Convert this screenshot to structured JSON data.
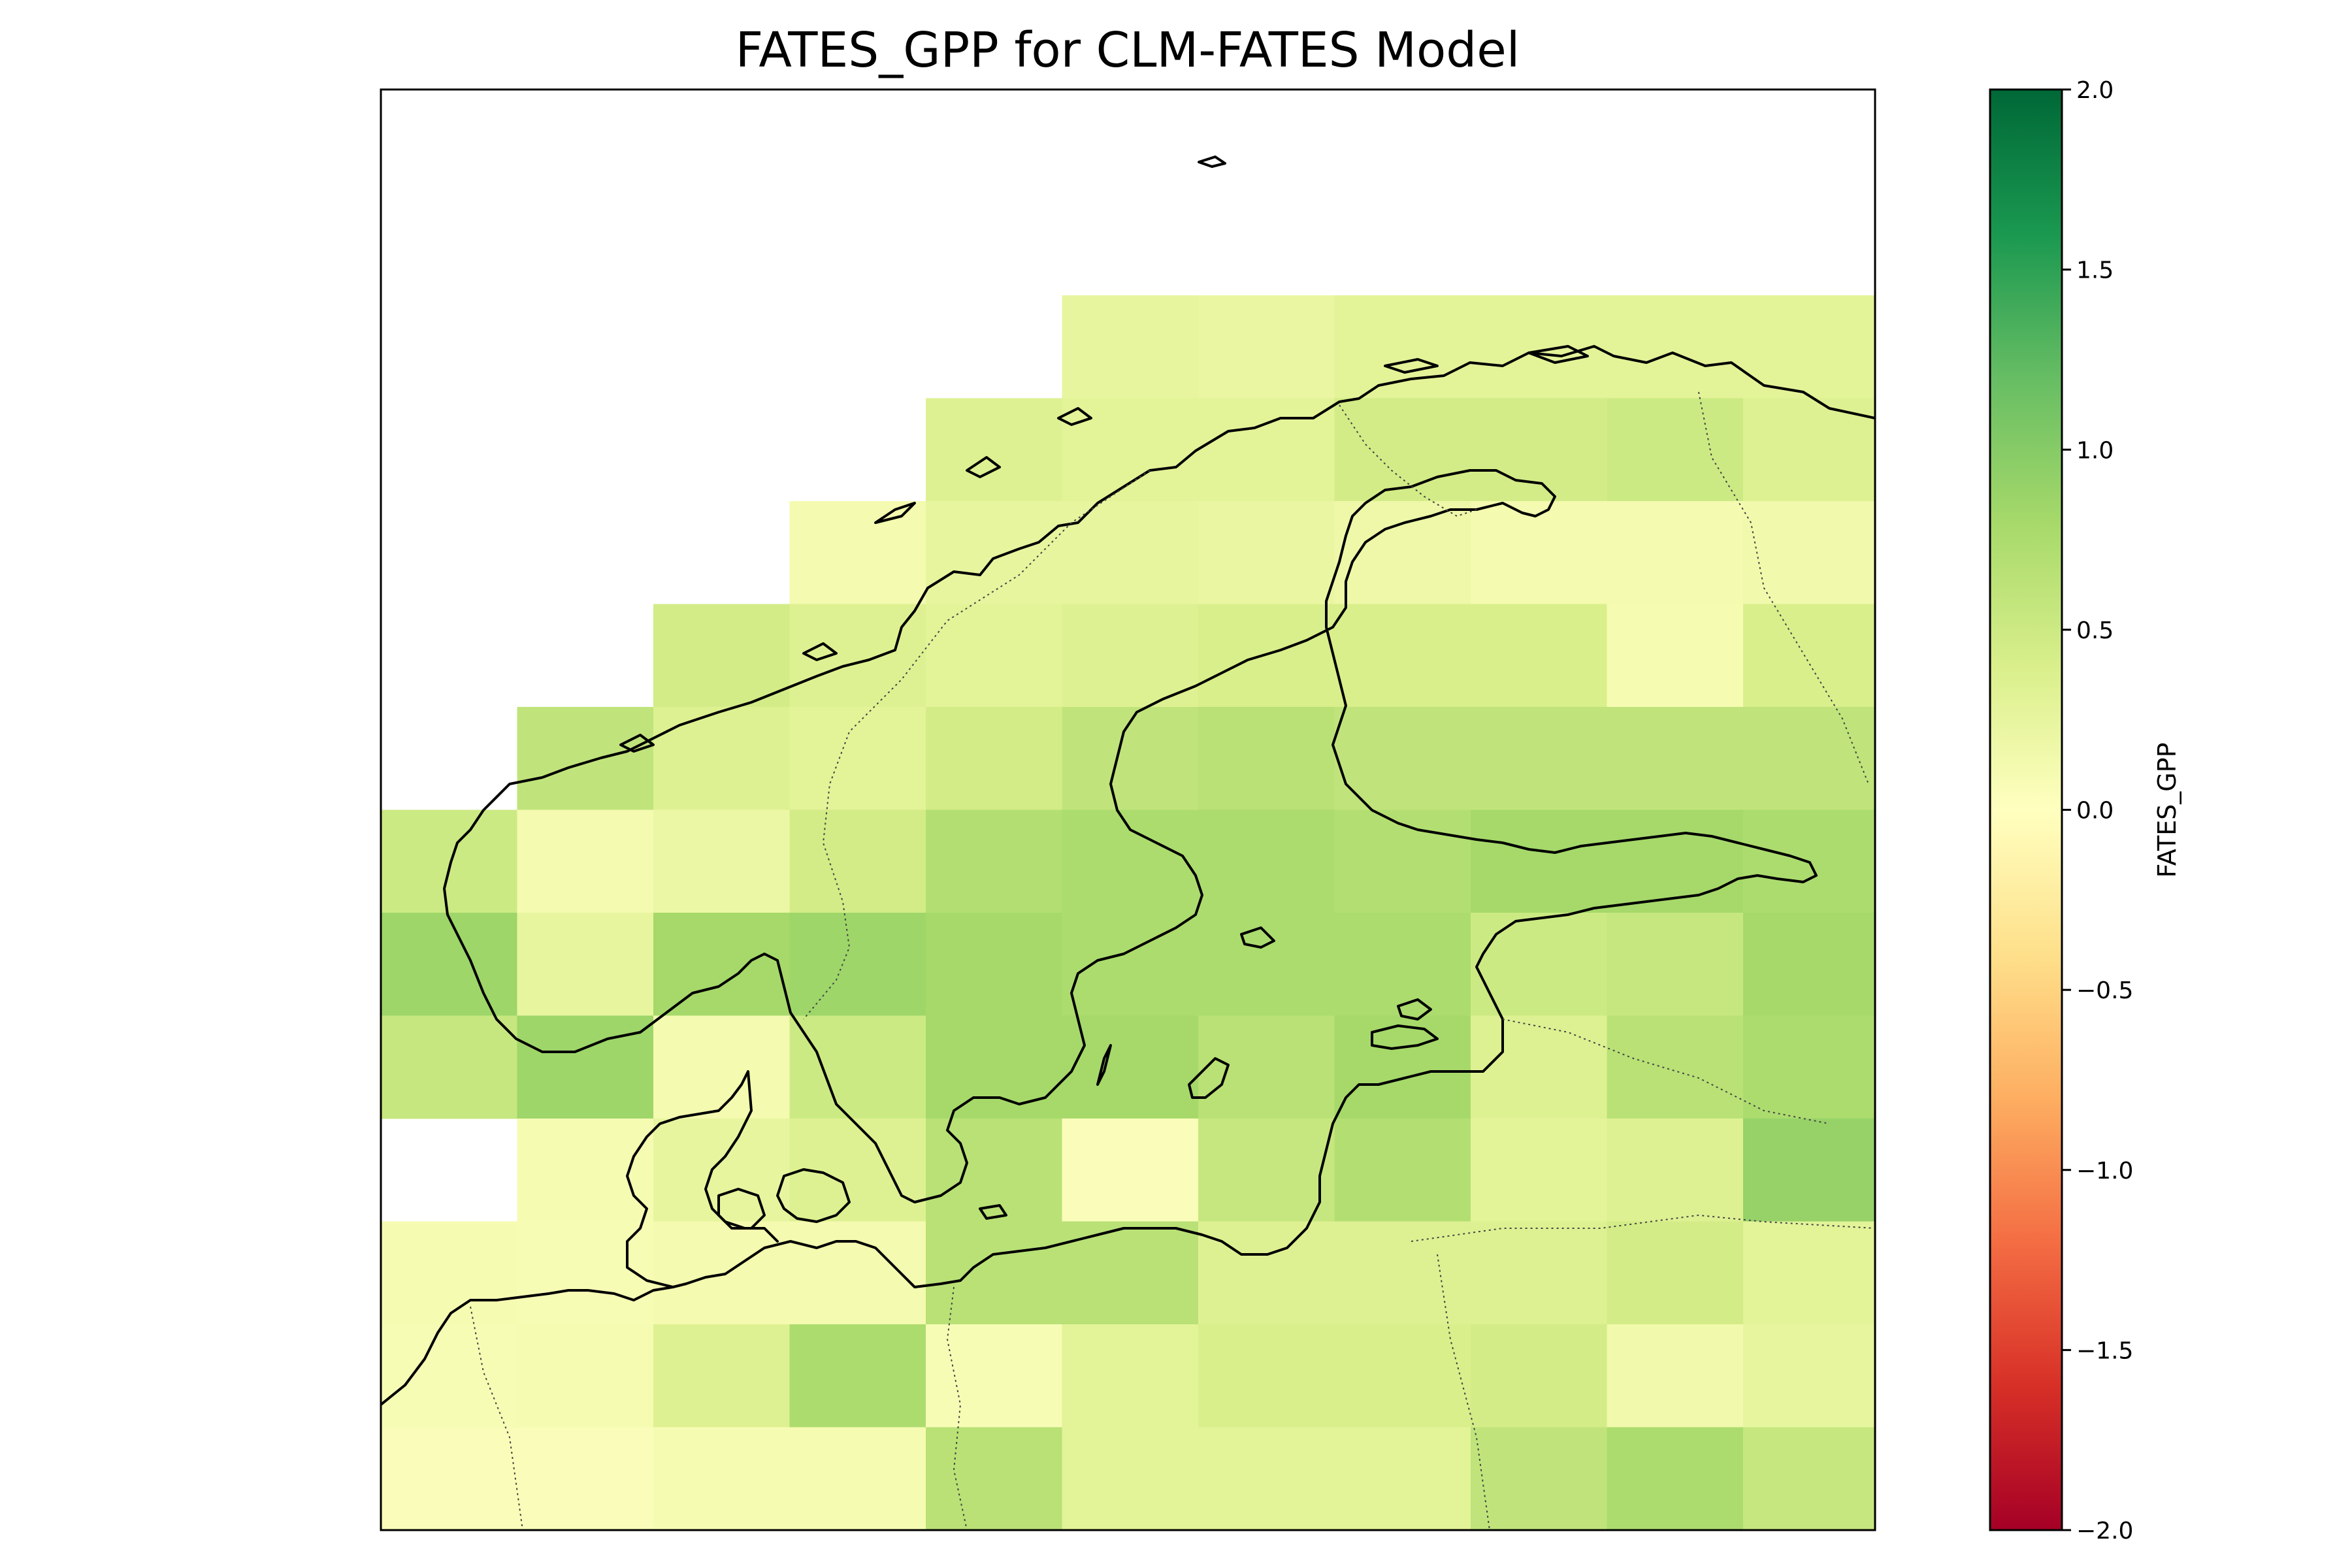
{
  "chart_data": {
    "type": "heatmap",
    "title": "FATES_GPP for CLM-FATES Model",
    "colorbar": {
      "label": "FATES_GPP",
      "colormap": "RdYlGn",
      "range": [
        -2.0,
        2.0
      ],
      "ticks": [
        "2.0",
        "1.5",
        "1.0",
        "0.5",
        "0.0",
        "−0.5",
        "−1.0",
        "−1.5",
        "−2.0"
      ],
      "tick_values": [
        2.0,
        1.5,
        1.0,
        0.5,
        0.0,
        -0.5,
        -1.0,
        -1.5,
        -2.0
      ]
    },
    "grid_columns": 11,
    "grid_rows": 12,
    "row_order": "north-to-south",
    "note_null": "null = no data (white)",
    "values": [
      [
        null,
        null,
        null,
        null,
        null,
        null,
        null,
        null,
        null,
        null,
        null
      ],
      [
        null,
        null,
        null,
        null,
        null,
        null,
        null,
        null,
        null,
        null,
        null
      ],
      [
        null,
        null,
        null,
        null,
        null,
        0.25,
        0.22,
        0.3,
        0.3,
        0.3,
        0.3
      ],
      [
        null,
        null,
        null,
        null,
        0.35,
        0.3,
        0.3,
        0.45,
        0.45,
        0.5,
        0.35
      ],
      [
        null,
        null,
        null,
        0.12,
        0.25,
        0.25,
        0.22,
        0.18,
        0.12,
        0.12,
        0.15
      ],
      [
        null,
        null,
        0.45,
        0.35,
        0.3,
        0.35,
        0.4,
        0.4,
        0.4,
        0.1,
        0.4
      ],
      [
        null,
        0.6,
        0.35,
        0.3,
        0.45,
        0.6,
        0.65,
        0.6,
        0.6,
        0.6,
        0.6
      ],
      [
        0.5,
        0.12,
        0.2,
        0.45,
        0.7,
        0.75,
        0.75,
        0.7,
        0.8,
        0.8,
        0.75
      ],
      [
        0.85,
        0.25,
        0.8,
        0.85,
        0.8,
        0.75,
        0.75,
        0.75,
        0.5,
        0.55,
        0.8
      ],
      [
        0.55,
        0.85,
        0.12,
        0.5,
        0.8,
        0.8,
        0.65,
        0.8,
        0.35,
        0.65,
        0.75
      ],
      [
        null,
        0.1,
        0.25,
        0.35,
        0.65,
        0.05,
        0.55,
        0.7,
        0.3,
        0.35,
        0.9
      ],
      [
        0.1,
        0.08,
        0.12,
        0.12,
        0.65,
        0.65,
        0.35,
        0.35,
        0.35,
        0.45,
        0.3
      ]
    ],
    "values_extra_row": [
      0.08,
      0.1,
      0.35,
      0.75,
      0.08,
      0.3,
      0.4,
      0.4,
      0.45,
      0.15,
      0.25
    ],
    "values_row_13": [
      0.05,
      0.05,
      0.1,
      0.1,
      0.65,
      0.3,
      0.3,
      0.3,
      0.6,
      0.75,
      0.55
    ]
  }
}
